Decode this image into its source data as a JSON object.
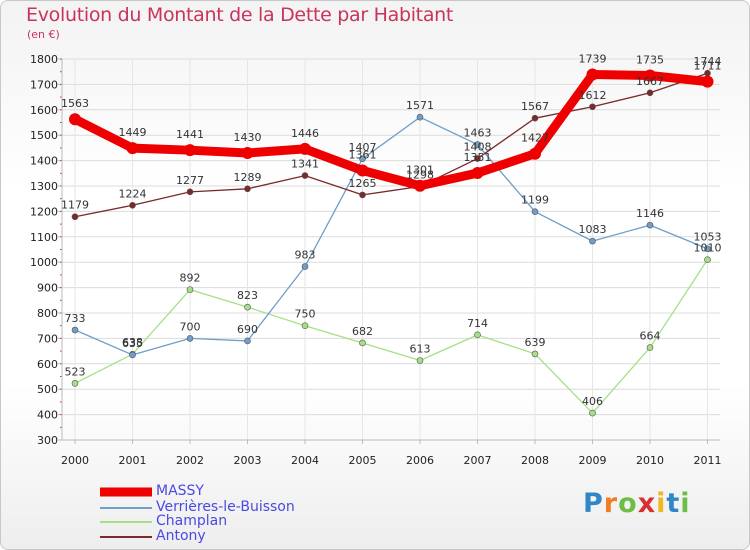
{
  "title": "Evolution du Montant de la Dette par Habitant",
  "subtitle": "(en €)",
  "logo_text": "Proxiti",
  "chart_data": {
    "type": "line",
    "title": "Evolution du Montant de la Dette par Habitant",
    "subtitle": "(en €)",
    "ylim": [
      300,
      1800
    ],
    "yticks": [
      300,
      400,
      500,
      600,
      700,
      800,
      900,
      1000,
      1100,
      1200,
      1300,
      1400,
      1500,
      1600,
      1700,
      1800
    ],
    "categories": [
      "2000",
      "2001",
      "2002",
      "2003",
      "2004",
      "2005",
      "2006",
      "2007",
      "2008",
      "2009",
      "2010",
      "2011"
    ],
    "grid": true,
    "legend_position": "bottom-left",
    "series": [
      {
        "name": "MASSY",
        "color": "#ee0000",
        "values": [
          1563,
          1449,
          1441,
          1430,
          1446,
          1361,
          1301,
          1351,
          1427,
          1739,
          1735,
          1711
        ]
      },
      {
        "name": "Verrières-le-Buisson",
        "color": "#6e9ec9",
        "values": [
          733,
          635,
          700,
          690,
          983,
          1407,
          1571,
          1463,
          1199,
          1083,
          1146,
          1053
        ]
      },
      {
        "name": "Champlan",
        "color": "#a6e085",
        "values": [
          523,
          638,
          892,
          823,
          750,
          682,
          613,
          714,
          639,
          406,
          664,
          1010
        ]
      },
      {
        "name": "Antony",
        "color": "#7a2a2a",
        "values": [
          1179,
          1224,
          1277,
          1289,
          1341,
          1265,
          1298,
          1408,
          1567,
          1612,
          1667,
          1744
        ]
      }
    ]
  }
}
